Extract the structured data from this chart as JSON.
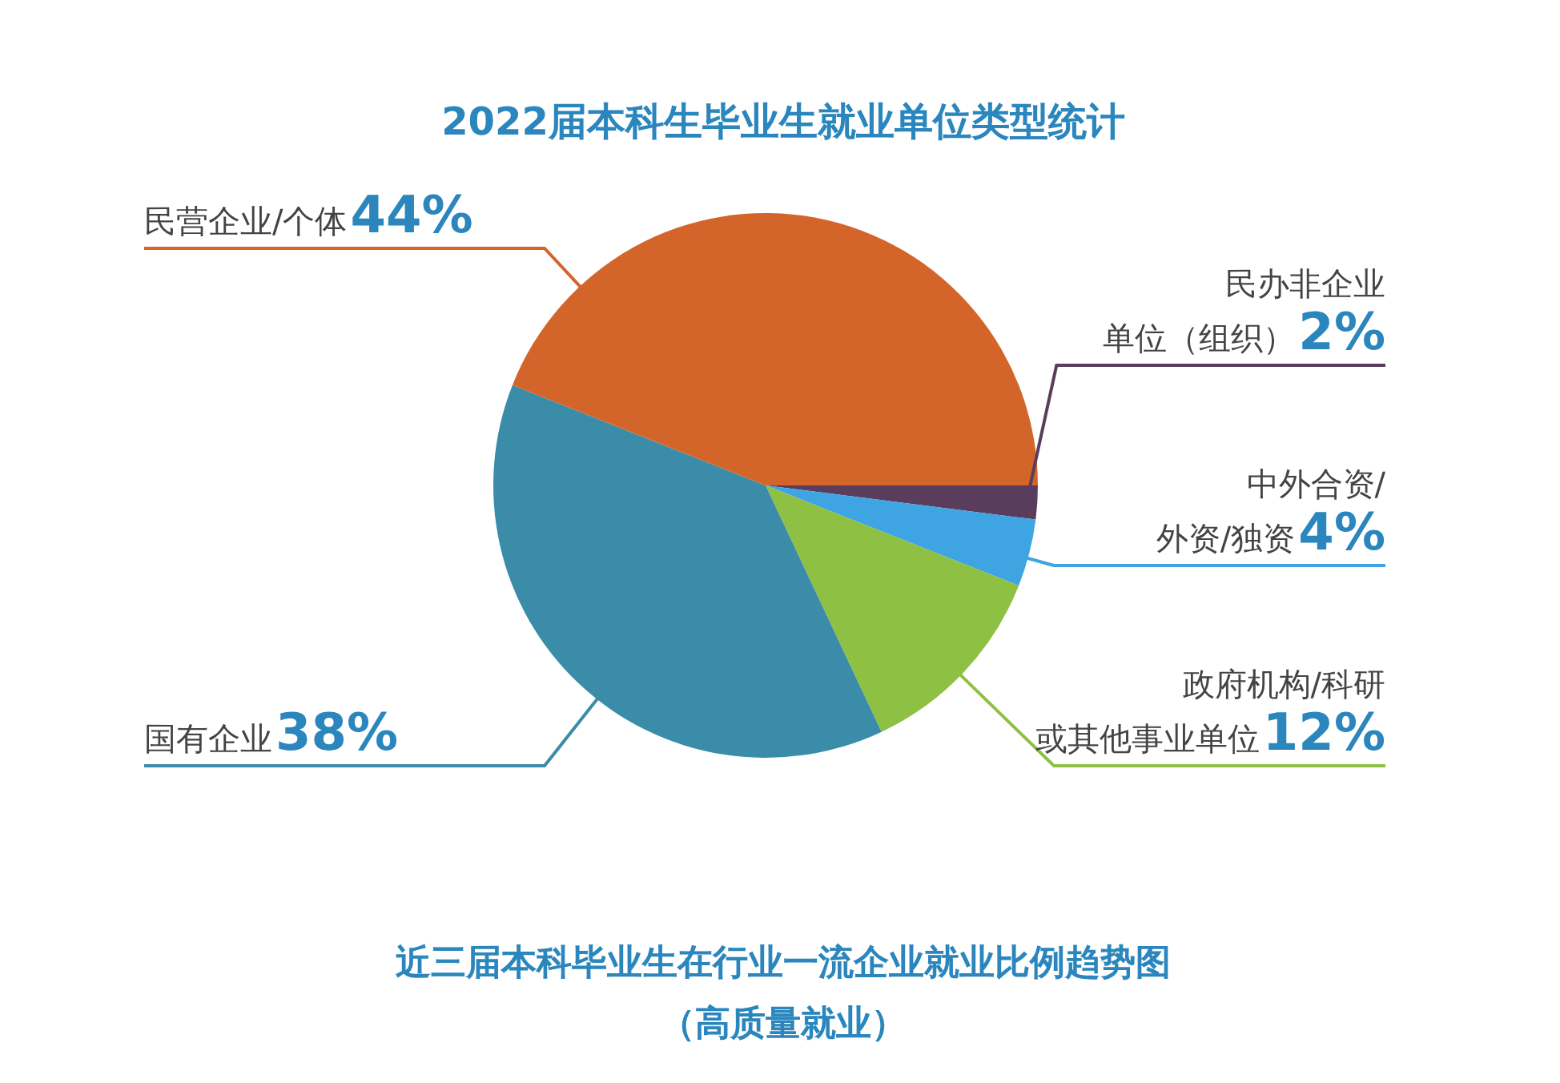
{
  "chart_data": {
    "type": "pie",
    "title": "2022届本科生毕业生就业单位类型统计",
    "categories": [
      "民办非企业单位（组织）",
      "中外合资/外资/独资",
      "政府机构/科研或其他事业单位",
      "国有企业",
      "民营企业/个体"
    ],
    "values": [
      2,
      4,
      12,
      38,
      44
    ],
    "colors": [
      "#5a3d5c",
      "#3fa4e2",
      "#8dc043",
      "#3b8ca8",
      "#d4652a"
    ],
    "value_labels": [
      "2%",
      "4%",
      "12%",
      "38%",
      "44%"
    ],
    "annotations": [
      "近三届本科毕业生在行业一流企业就业比例趋势图",
      "（高质量就业）"
    ]
  }
}
